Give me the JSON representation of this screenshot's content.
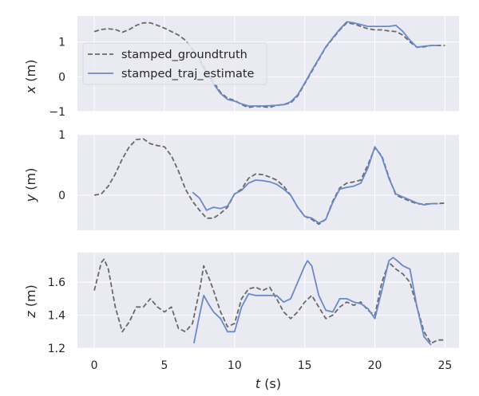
{
  "colors": {
    "panel_bg": "#EAEAF2",
    "grid": "#FFFFFF",
    "groundtruth": "#696969",
    "estimate": "#6A89C9",
    "text": "#262626"
  },
  "chart_data": [
    {
      "type": "line",
      "ylabel_var": "x",
      "ylabel_unit": " (m)",
      "xlim": [
        -1.2,
        26
      ],
      "ylim": [
        -1.0,
        1.75
      ],
      "yticks": [
        "−1",
        "0",
        "1"
      ],
      "ytick_values": [
        -1,
        0,
        1
      ],
      "xticks": [
        0,
        5,
        10,
        15,
        20,
        25
      ],
      "grid": true,
      "legend": {
        "placement": "upper-left",
        "entries": [
          "stamped_groundtruth",
          "stamped_traj_estimate"
        ]
      },
      "series": [
        {
          "name": "stamped_groundtruth",
          "style": "dashed",
          "x": [
            0,
            0.5,
            1,
            1.5,
            2,
            2.5,
            3,
            3.5,
            4,
            4.5,
            5,
            5.5,
            6,
            6.5,
            7,
            7.5,
            8,
            8.5,
            9,
            9.5,
            10,
            10.5,
            11,
            11.5,
            12,
            12.5,
            13,
            13.5,
            14,
            14.5,
            15,
            15.5,
            16,
            16.5,
            17,
            17.5,
            18,
            18.5,
            19,
            19.5,
            20,
            20.5,
            21,
            21.5,
            22,
            22.5,
            23,
            23.5,
            24,
            24.5,
            25
          ],
          "y": [
            1.3,
            1.36,
            1.38,
            1.36,
            1.28,
            1.36,
            1.48,
            1.55,
            1.55,
            1.48,
            1.4,
            1.3,
            1.2,
            1.05,
            0.8,
            0.5,
            0.15,
            -0.15,
            -0.45,
            -0.62,
            -0.68,
            -0.8,
            -0.88,
            -0.85,
            -0.86,
            -0.88,
            -0.82,
            -0.8,
            -0.75,
            -0.55,
            -0.2,
            0.15,
            0.5,
            0.85,
            1.1,
            1.35,
            1.55,
            1.52,
            1.45,
            1.38,
            1.35,
            1.35,
            1.32,
            1.3,
            1.2,
            1.0,
            0.85,
            0.86,
            0.9,
            0.9,
            0.9
          ]
        },
        {
          "name": "stamped_traj_estimate",
          "style": "solid",
          "x": [
            7.5,
            8,
            8.5,
            9,
            9.5,
            10,
            10.5,
            11,
            11.5,
            12,
            12.5,
            13,
            13.5,
            14,
            14.5,
            15,
            15.5,
            16,
            16.5,
            17,
            17.5,
            18,
            18.5,
            19,
            19.5,
            20,
            20.5,
            21,
            21.5,
            22,
            22.5,
            23,
            23.5,
            24,
            24.5
          ],
          "y": [
            0.45,
            0.12,
            -0.2,
            -0.48,
            -0.65,
            -0.7,
            -0.78,
            -0.84,
            -0.84,
            -0.84,
            -0.83,
            -0.82,
            -0.8,
            -0.72,
            -0.52,
            -0.18,
            0.18,
            0.52,
            0.86,
            1.12,
            1.37,
            1.58,
            1.55,
            1.5,
            1.45,
            1.45,
            1.45,
            1.45,
            1.48,
            1.3,
            1.05,
            0.85,
            0.88,
            0.9,
            0.9
          ]
        }
      ]
    },
    {
      "type": "line",
      "ylabel_var": "y",
      "ylabel_unit": " (m)",
      "xlim": [
        -1.2,
        26
      ],
      "ylim": [
        -0.58,
        1.0
      ],
      "yticks": [
        "0",
        "1"
      ],
      "ytick_values": [
        0,
        1
      ],
      "xticks": [
        0,
        5,
        10,
        15,
        20,
        25
      ],
      "grid": true,
      "series": [
        {
          "name": "stamped_groundtruth",
          "style": "dashed",
          "x": [
            0,
            0.5,
            1,
            1.5,
            2,
            2.5,
            3,
            3.5,
            4,
            4.5,
            5,
            5.5,
            6,
            6.5,
            7,
            7.5,
            8,
            8.5,
            9,
            9.5,
            10,
            10.5,
            11,
            11.5,
            12,
            12.5,
            13,
            13.5,
            14,
            14.5,
            15,
            15.5,
            16,
            16.5,
            17,
            17.5,
            18,
            18.5,
            19,
            19.5,
            20,
            20.5,
            21,
            21.5,
            22,
            22.5,
            23,
            23.5,
            24,
            24.5,
            25
          ],
          "y": [
            0.0,
            0.02,
            0.15,
            0.35,
            0.6,
            0.8,
            0.92,
            0.93,
            0.85,
            0.82,
            0.8,
            0.65,
            0.4,
            0.1,
            -0.1,
            -0.25,
            -0.38,
            -0.38,
            -0.3,
            -0.2,
            0.02,
            0.1,
            0.28,
            0.35,
            0.34,
            0.3,
            0.25,
            0.15,
            0.0,
            -0.2,
            -0.35,
            -0.4,
            -0.48,
            -0.4,
            -0.1,
            0.12,
            0.2,
            0.22,
            0.25,
            0.5,
            0.78,
            0.65,
            0.3,
            0.0,
            -0.05,
            -0.1,
            -0.14,
            -0.15,
            -0.14,
            -0.14,
            -0.13
          ]
        },
        {
          "name": "stamped_traj_estimate",
          "style": "solid",
          "x": [
            7,
            7.5,
            8,
            8.5,
            9,
            9.5,
            10,
            10.5,
            11,
            11.5,
            12,
            12.5,
            13,
            13.5,
            14,
            14.5,
            15,
            15.5,
            16,
            16.5,
            17,
            17.5,
            18,
            18.5,
            19,
            19.5,
            20,
            20.5,
            21,
            21.5,
            22,
            22.5,
            23,
            23.5,
            24,
            24.5
          ],
          "y": [
            0.05,
            -0.05,
            -0.25,
            -0.2,
            -0.22,
            -0.18,
            0.02,
            0.08,
            0.2,
            0.25,
            0.24,
            0.22,
            0.18,
            0.1,
            0.0,
            -0.2,
            -0.35,
            -0.38,
            -0.46,
            -0.4,
            -0.12,
            0.1,
            0.13,
            0.15,
            0.2,
            0.45,
            0.8,
            0.63,
            0.28,
            0.02,
            -0.03,
            -0.08,
            -0.13,
            -0.16,
            -0.14,
            -0.14
          ]
        }
      ]
    },
    {
      "type": "line",
      "ylabel_var": "z",
      "ylabel_unit": " (m)",
      "xlim": [
        -1.2,
        26
      ],
      "ylim": [
        1.2,
        1.78
      ],
      "yticks": [
        "1.2",
        "1.4",
        "1.6"
      ],
      "ytick_values": [
        1.2,
        1.4,
        1.6
      ],
      "xticks": [
        0,
        5,
        10,
        15,
        20,
        25
      ],
      "xlabel_var": "t",
      "xlabel_unit": " (s)",
      "grid": true,
      "series": [
        {
          "name": "stamped_groundtruth",
          "style": "dashed",
          "x": [
            0,
            0.5,
            0.7,
            1,
            1.5,
            2,
            2.5,
            3,
            3.5,
            4,
            4.5,
            5,
            5.5,
            6,
            6.5,
            7,
            7.5,
            7.8,
            8.2,
            8.5,
            9,
            9.5,
            10,
            10.5,
            11,
            11.5,
            12,
            12.5,
            13,
            13.5,
            14,
            14.5,
            15,
            15.5,
            16,
            16.5,
            17,
            17.5,
            18,
            18.5,
            19,
            19.5,
            20,
            20.5,
            21,
            21.5,
            22,
            22.5,
            23,
            23.5,
            24,
            24.5,
            25
          ],
          "y": [
            1.55,
            1.72,
            1.74,
            1.68,
            1.45,
            1.3,
            1.36,
            1.45,
            1.45,
            1.5,
            1.45,
            1.42,
            1.45,
            1.32,
            1.3,
            1.35,
            1.55,
            1.7,
            1.62,
            1.55,
            1.42,
            1.33,
            1.35,
            1.5,
            1.56,
            1.57,
            1.55,
            1.57,
            1.5,
            1.42,
            1.38,
            1.42,
            1.48,
            1.52,
            1.45,
            1.38,
            1.4,
            1.45,
            1.48,
            1.46,
            1.48,
            1.43,
            1.4,
            1.6,
            1.72,
            1.68,
            1.65,
            1.6,
            1.45,
            1.3,
            1.23,
            1.25,
            1.25
          ]
        },
        {
          "name": "stamped_traj_estimate",
          "style": "solid",
          "x": [
            7.1,
            7.5,
            7.8,
            8.2,
            8.5,
            9,
            9.5,
            10,
            10.5,
            11,
            11.5,
            12,
            12.5,
            13,
            13.5,
            14,
            14.5,
            15,
            15.2,
            15.5,
            16,
            16.5,
            17,
            17.5,
            18,
            18.5,
            19,
            19.5,
            20,
            20.5,
            21,
            21.3,
            21.6,
            22,
            22.5,
            23,
            23.5,
            24
          ],
          "y": [
            1.23,
            1.4,
            1.52,
            1.46,
            1.42,
            1.38,
            1.3,
            1.3,
            1.45,
            1.53,
            1.52,
            1.52,
            1.52,
            1.52,
            1.48,
            1.5,
            1.6,
            1.7,
            1.73,
            1.7,
            1.52,
            1.43,
            1.42,
            1.5,
            1.5,
            1.48,
            1.47,
            1.44,
            1.38,
            1.55,
            1.73,
            1.75,
            1.73,
            1.7,
            1.68,
            1.45,
            1.27,
            1.22
          ]
        }
      ]
    }
  ]
}
